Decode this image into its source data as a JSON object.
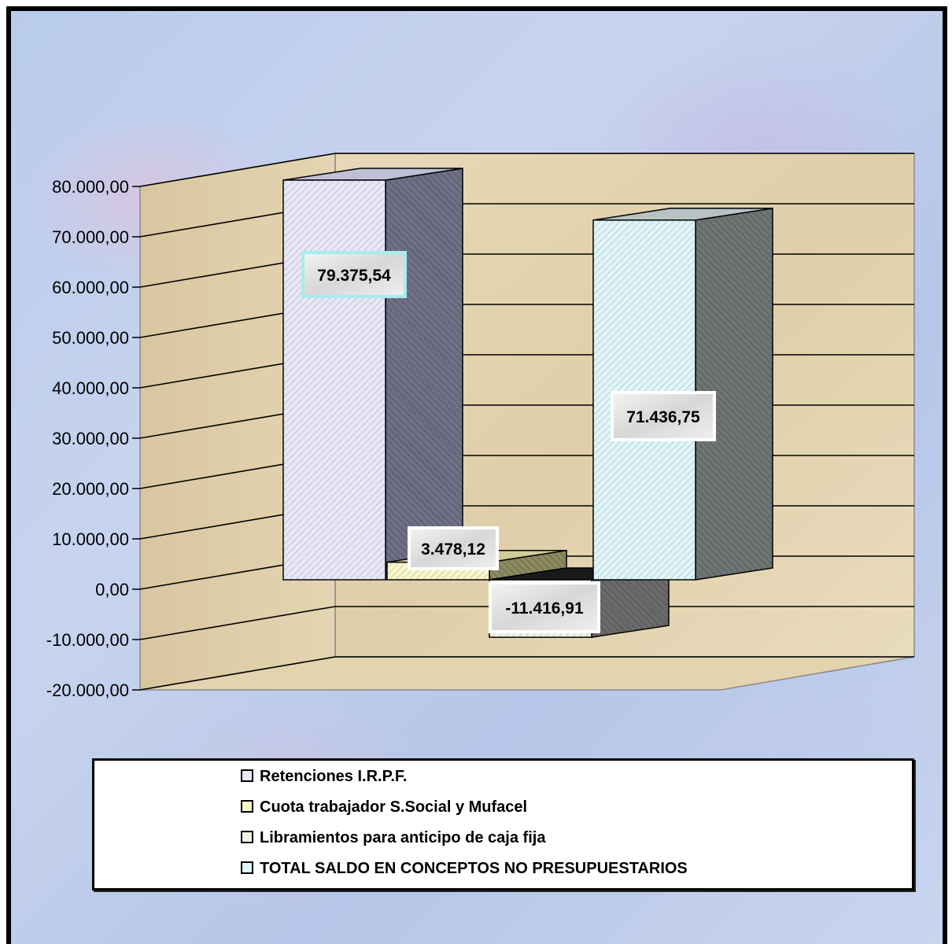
{
  "chart_data": {
    "type": "bar",
    "ylim": [
      -20000,
      80000
    ],
    "yticks": [
      {
        "value": 80000,
        "label": "80.000,00"
      },
      {
        "value": 70000,
        "label": "70.000,00"
      },
      {
        "value": 60000,
        "label": "60.000,00"
      },
      {
        "value": 50000,
        "label": "50.000,00"
      },
      {
        "value": 40000,
        "label": "40.000,00"
      },
      {
        "value": 30000,
        "label": "30.000,00"
      },
      {
        "value": 20000,
        "label": "20.000,00"
      },
      {
        "value": 10000,
        "label": "10.000,00"
      },
      {
        "value": 0,
        "label": "0,00"
      },
      {
        "value": -10000,
        "label": "-10.000,00"
      },
      {
        "value": -20000,
        "label": "-20.000,00"
      }
    ],
    "series": [
      {
        "name": "Retenciones I.R.P.F.",
        "value": 79375.54,
        "label": "79.375,54",
        "color": "#e8e8f6"
      },
      {
        "name": "Cuota trabajador S.Social y Mufacel",
        "value": 3478.12,
        "label": "3.478,12",
        "color": "#f9f6c9"
      },
      {
        "name": "Libramientos para anticipo de caja fija",
        "value": -11416.91,
        "label": "-11.416,91",
        "color": "#eef6e2"
      },
      {
        "name": "TOTAL SALDO EN CONCEPTOS NO PRESUPUESTARIOS",
        "value": 71436.75,
        "label": "71.436,75",
        "color": "#dff6f9"
      }
    ],
    "grid": true,
    "legend_position": "bottom"
  }
}
